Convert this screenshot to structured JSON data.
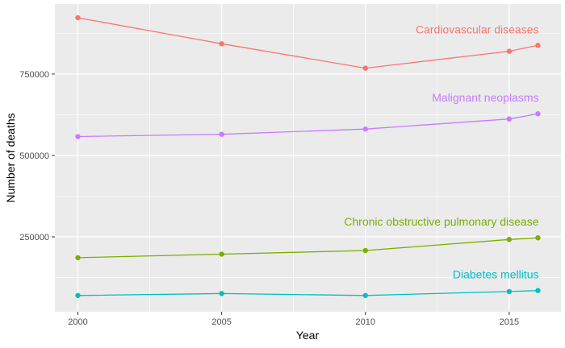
{
  "chart_data": {
    "type": "line",
    "title": "",
    "xlabel": "Year",
    "ylabel": "Number of deaths",
    "x": [
      2000,
      2005,
      2010,
      2015,
      2016
    ],
    "xticks": [
      2000,
      2005,
      2010,
      2015
    ],
    "yticks": [
      250000,
      500000,
      750000
    ],
    "xlim": [
      1999.2,
      2016.8
    ],
    "ylim": [
      20000,
      965000
    ],
    "grid": true,
    "legend": "none (direct labels near line ends)",
    "series": [
      {
        "name": "Cardiovascular diseases",
        "color": "#F8766D",
        "values": [
          923000,
          843000,
          768000,
          820000,
          838000
        ]
      },
      {
        "name": "Malignant neoplasms",
        "color": "#C77CFF",
        "values": [
          558000,
          565000,
          581000,
          612000,
          628000
        ]
      },
      {
        "name": "Chronic obstructive pulmonary disease",
        "color": "#7CAE00",
        "values": [
          186000,
          197000,
          208000,
          242000,
          247000
        ]
      },
      {
        "name": "Diabetes mellitus",
        "color": "#00BFC4",
        "values": [
          70000,
          76000,
          70000,
          82000,
          85000
        ]
      }
    ]
  }
}
